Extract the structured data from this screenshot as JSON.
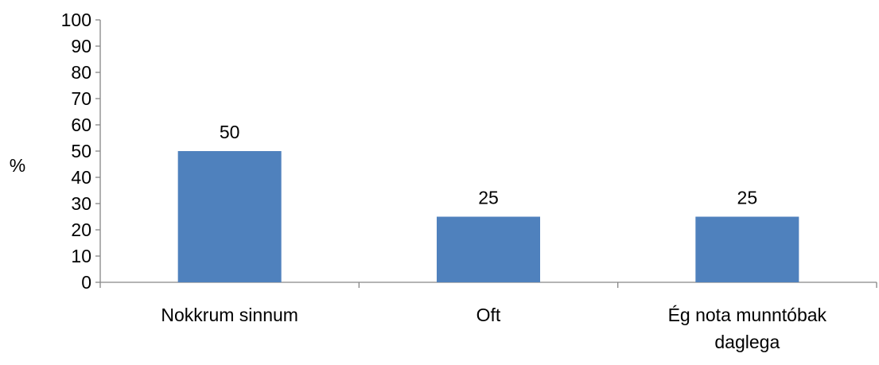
{
  "chart_data": {
    "type": "bar",
    "categories": [
      [
        "Nokkrum sinnum"
      ],
      [
        "Oft"
      ],
      [
        "Ég nota munntóbak",
        "daglega"
      ]
    ],
    "values": [
      50,
      25,
      25
    ],
    "data_labels": [
      "50",
      "25",
      "25"
    ],
    "title": "",
    "xlabel": "",
    "ylabel": "%",
    "ylim": [
      0,
      100
    ],
    "yticks": [
      0,
      10,
      20,
      30,
      40,
      50,
      60,
      70,
      80,
      90,
      100
    ],
    "grid": false,
    "legend": "none",
    "bar_color": "#4F81BD",
    "axis_color": "#868686"
  }
}
